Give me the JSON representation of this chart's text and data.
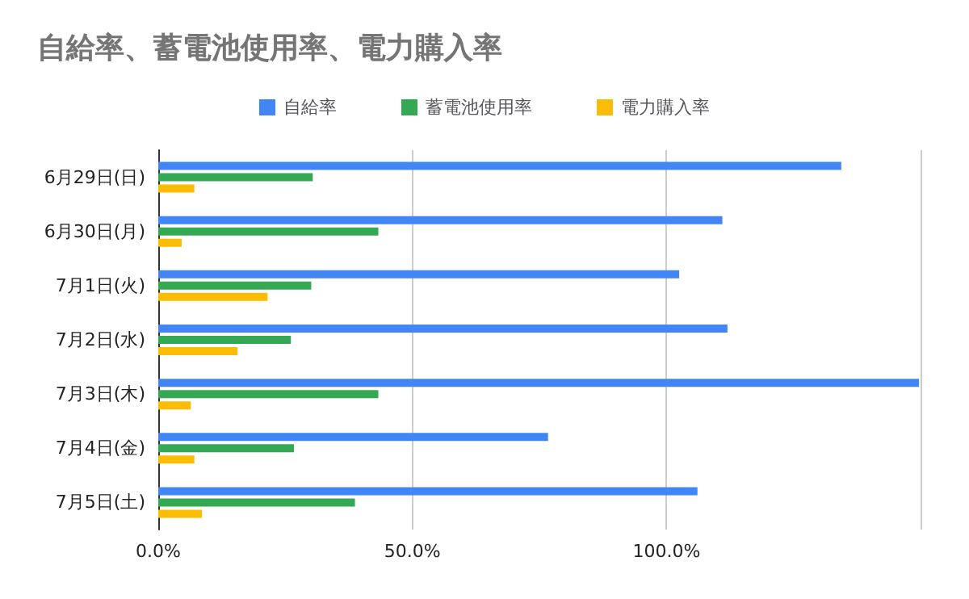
{
  "chart_data": {
    "type": "bar",
    "orientation": "horizontal",
    "title": "自給率、蓄電池使用率、電力購入率",
    "categories": [
      "6月29日(日)",
      "6月30日(月)",
      "7月1日(火)",
      "7月2日(水)",
      "7月3日(木)",
      "7月4日(金)",
      "7月5日(土)"
    ],
    "series": [
      {
        "name": "自給率",
        "color": "#4285f4",
        "values": [
          134.4,
          111.0,
          102.5,
          112.0,
          149.7,
          76.7,
          106.1
        ]
      },
      {
        "name": "蓄電池使用率",
        "color": "#34a853",
        "values": [
          30.4,
          43.3,
          30.1,
          26.1,
          43.3,
          26.7,
          38.7
        ]
      },
      {
        "name": "電力購入率",
        "color": "#fbbc04",
        "values": [
          7.1,
          4.6,
          21.5,
          15.6,
          6.4,
          7.1,
          8.6
        ]
      }
    ],
    "xlim": [
      0,
      150
    ],
    "xticks": [
      {
        "value": 0,
        "label": "0.0%"
      },
      {
        "value": 50,
        "label": "50.0%"
      },
      {
        "value": 100,
        "label": "100.0%"
      },
      {
        "value": 150,
        "label": null
      }
    ],
    "grid": "x",
    "legend": "top"
  }
}
